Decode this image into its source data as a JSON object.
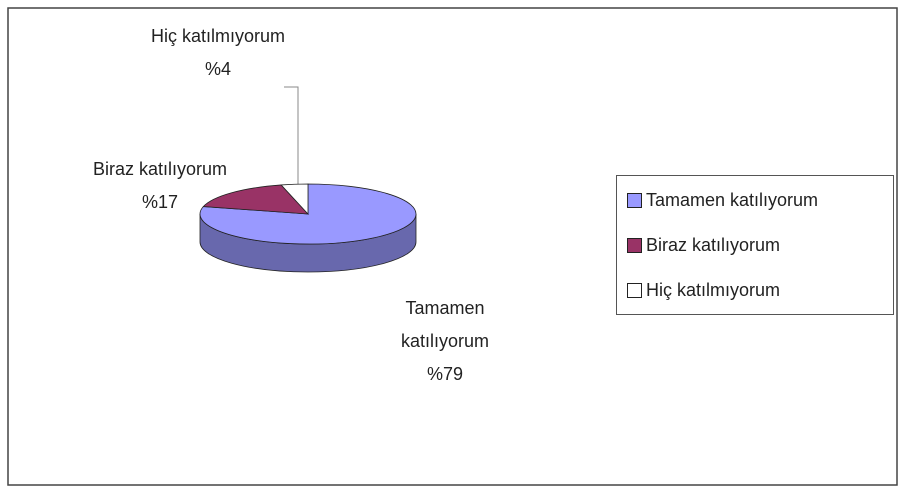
{
  "chart_data": {
    "type": "pie",
    "categories": [
      "Tamamen katılıyorum",
      "Biraz katılıyorum",
      "Hiç katılmıyorum"
    ],
    "values": [
      79,
      17,
      4
    ],
    "value_labels": [
      "%79",
      "%17",
      "%4"
    ],
    "colors": [
      "#9999ff",
      "#993366",
      "#ffffff"
    ],
    "legend": "right"
  }
}
